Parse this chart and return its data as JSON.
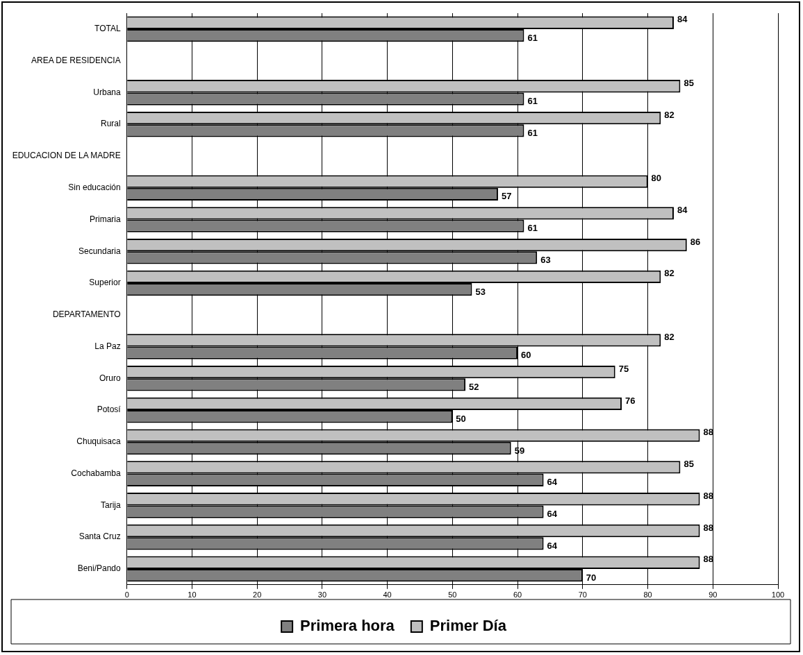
{
  "chart_data": {
    "type": "bar",
    "orientation": "horizontal",
    "categories": [
      "TOTAL",
      "AREA DE RESIDENCIA",
      "Urbana",
      "Rural",
      "EDUCACION DE LA MADRE",
      "Sin educación",
      "Primaria",
      "Secundaria",
      "Superior",
      "DEPARTAMENTO",
      "La Paz",
      "Oruro",
      "Potosí",
      "Chuquisaca",
      "Cochabamba",
      "Tarija",
      "Santa Cruz",
      "Beni/Pando"
    ],
    "series": [
      {
        "name": "Primer Día",
        "color": "#c0c0c0",
        "values": [
          84,
          null,
          85,
          82,
          null,
          80,
          84,
          86,
          82,
          null,
          82,
          75,
          76,
          88,
          85,
          88,
          88,
          88
        ]
      },
      {
        "name": "Primera hora",
        "color": "#808080",
        "values": [
          61,
          null,
          61,
          61,
          null,
          57,
          61,
          63,
          53,
          null,
          60,
          52,
          50,
          59,
          64,
          64,
          64,
          70
        ]
      }
    ],
    "xlim": [
      0,
      100
    ],
    "xticks": [
      0,
      10,
      20,
      30,
      40,
      50,
      60,
      70,
      80,
      90,
      100
    ],
    "grid": "x",
    "legend": "bottom",
    "data_labels": true
  }
}
